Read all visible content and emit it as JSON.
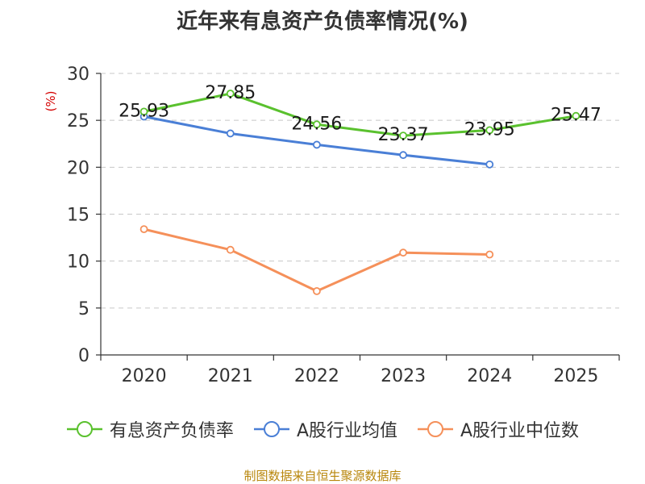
{
  "chart_data": {
    "type": "line",
    "title": "近年来有息资产负债率情况(%)",
    "ylabel": "(%)",
    "xlabel": "",
    "categories": [
      "2020",
      "2021",
      "2022",
      "2023",
      "2024",
      "2025"
    ],
    "ylim": [
      0,
      30
    ],
    "yticks": [
      0,
      5,
      10,
      15,
      20,
      25,
      30
    ],
    "grid": true,
    "legend_position": "bottom",
    "series": [
      {
        "name": "有息资产负债率",
        "color": "#5ac12e",
        "values": [
          25.93,
          27.85,
          24.56,
          23.37,
          23.95,
          25.47
        ],
        "labels": [
          "25.93",
          "27.85",
          "24.56",
          "23.37",
          "23.95",
          "25.47"
        ]
      },
      {
        "name": "A股行业均值",
        "color": "#4a7fd6",
        "values": [
          25.4,
          23.6,
          22.4,
          21.3,
          20.3,
          null
        ]
      },
      {
        "name": "A股行业中位数",
        "color": "#f5905a",
        "values": [
          13.4,
          11.2,
          6.8,
          10.9,
          10.7,
          null
        ]
      }
    ]
  },
  "footer": "制图数据来自恒生聚源数据库"
}
